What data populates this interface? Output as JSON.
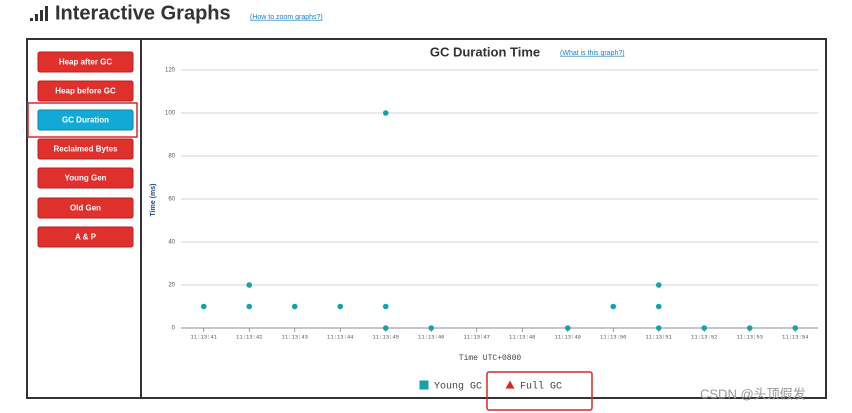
{
  "header": {
    "title": "Interactive Graphs",
    "link": "(How to zoom graphs?)"
  },
  "sidebar": {
    "buttons": [
      "Heap after GC",
      "Heap before GC",
      "GC Duration",
      "Reclaimed Bytes",
      "Young Gen",
      "Old Gen",
      "A & P"
    ],
    "active": 2
  },
  "chart_data": {
    "type": "scatter",
    "title": "GC Duration Time",
    "link": "(What is this graph?)",
    "x_label": "Time UTC+0800",
    "y_label": "Time (ms)",
    "categories": [
      "11:13:41",
      "11:13:42",
      "11:13:43",
      "11:13:44",
      "11:13:45",
      "11:13:46",
      "11:13:47",
      "11:13:48",
      "11:13:49",
      "11:13:50",
      "11:13:51",
      "11:13:52",
      "11:13:53",
      "11:13:54"
    ],
    "ylim": [
      0,
      120
    ],
    "yticks": [
      0,
      20,
      40,
      60,
      80,
      100,
      120
    ],
    "grid": true,
    "series": [
      {
        "name": "Young GC",
        "color": "#17a2a8",
        "marker": "square",
        "x": [
          "11:13:41",
          "11:13:42",
          "11:13:42",
          "11:13:43",
          "11:13:44",
          "11:13:45",
          "11:13:45",
          "11:13:45",
          "11:13:46",
          "11:13:49",
          "11:13:50",
          "11:13:51",
          "11:13:51",
          "11:13:51",
          "11:13:52",
          "11:13:53",
          "11:13:54"
        ],
        "values": [
          10,
          20,
          10,
          10,
          10,
          100,
          10,
          0,
          0,
          0,
          10,
          20,
          10,
          0,
          0,
          0,
          0
        ]
      },
      {
        "name": "Full GC",
        "color": "#d42a2a",
        "marker": "triangle",
        "x": [],
        "values": []
      }
    ]
  },
  "watermark": "CSDN @头顶假发"
}
